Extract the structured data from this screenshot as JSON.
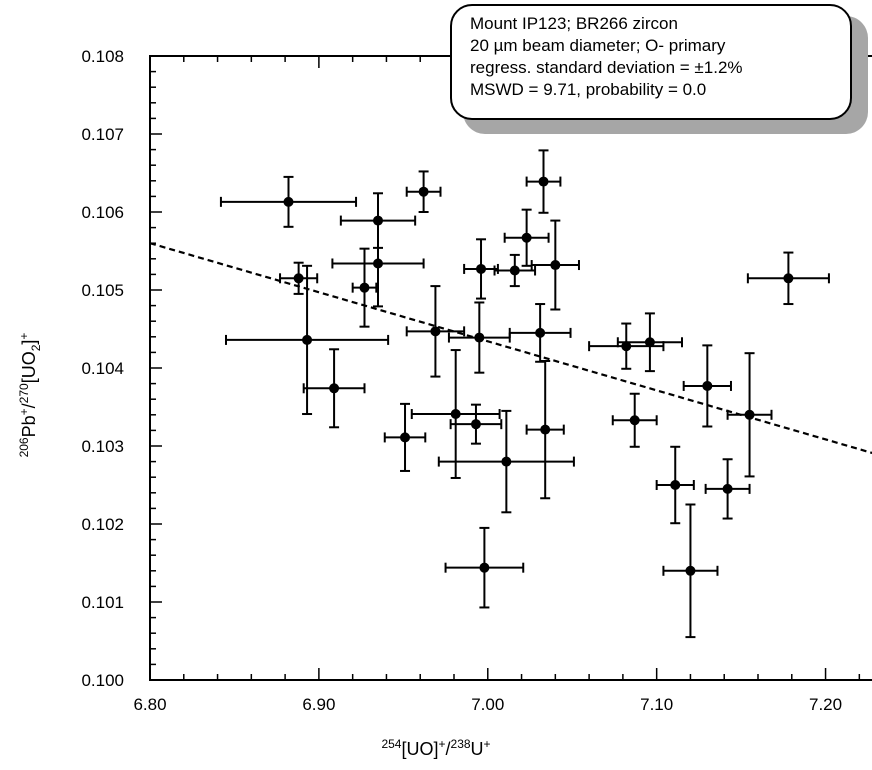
{
  "chart_data": {
    "type": "scatter",
    "xlabel": "254[UO]+/238U+",
    "ylabel": "206Pb+/270[UO2]+",
    "xlim": [
      6.8,
      7.25
    ],
    "ylim": [
      0.1,
      0.108
    ],
    "x_ticks": [
      "6.80",
      "6.90",
      "7.00",
      "7.10",
      "7.20"
    ],
    "y_ticks": [
      "0.100",
      "0.101",
      "0.102",
      "0.103",
      "0.104",
      "0.105",
      "0.106",
      "0.107",
      "0.108"
    ],
    "grid": false,
    "legend_placement": "top-right",
    "annotation": [
      "Mount IP123; BR266 zircon",
      "20 µm beam diameter; O- primary",
      "regress. standard deviation =  ±1.2%",
      "MSWD = 9.71, probability = 0.0"
    ],
    "points": [
      {
        "x": 6.882,
        "y": 0.10613,
        "xerr": 0.04,
        "yerr": 0.00032
      },
      {
        "x": 6.888,
        "y": 0.10515,
        "xerr": 0.011,
        "yerr": 0.0002
      },
      {
        "x": 6.893,
        "y": 0.10436,
        "xerr": 0.048,
        "yerr": 0.00095
      },
      {
        "x": 6.909,
        "y": 0.10374,
        "xerr": 0.018,
        "yerr": 0.0005
      },
      {
        "x": 6.927,
        "y": 0.10503,
        "xerr": 0.007,
        "yerr": 0.0005
      },
      {
        "x": 6.935,
        "y": 0.10589,
        "xerr": 0.022,
        "yerr": 0.00035
      },
      {
        "x": 6.935,
        "y": 0.10534,
        "xerr": 0.027,
        "yerr": 0.00055
      },
      {
        "x": 6.951,
        "y": 0.10311,
        "xerr": 0.012,
        "yerr": 0.00043
      },
      {
        "x": 6.962,
        "y": 0.10626,
        "xerr": 0.01,
        "yerr": 0.00026
      },
      {
        "x": 6.969,
        "y": 0.10447,
        "xerr": 0.017,
        "yerr": 0.00058
      },
      {
        "x": 6.981,
        "y": 0.10341,
        "xerr": 0.026,
        "yerr": 0.00082
      },
      {
        "x": 6.993,
        "y": 0.10328,
        "xerr": 0.015,
        "yerr": 0.00025
      },
      {
        "x": 6.995,
        "y": 0.10439,
        "xerr": 0.018,
        "yerr": 0.00045
      },
      {
        "x": 6.996,
        "y": 0.10527,
        "xerr": 0.01,
        "yerr": 0.00038
      },
      {
        "x": 6.998,
        "y": 0.10144,
        "xerr": 0.023,
        "yerr": 0.00051
      },
      {
        "x": 7.011,
        "y": 0.1028,
        "xerr": 0.04,
        "yerr": 0.00065
      },
      {
        "x": 7.016,
        "y": 0.10525,
        "xerr": 0.012,
        "yerr": 0.0002
      },
      {
        "x": 7.023,
        "y": 0.10567,
        "xerr": 0.013,
        "yerr": 0.00036
      },
      {
        "x": 7.031,
        "y": 0.10445,
        "xerr": 0.018,
        "yerr": 0.00037
      },
      {
        "x": 7.033,
        "y": 0.10639,
        "xerr": 0.01,
        "yerr": 0.0004
      },
      {
        "x": 7.034,
        "y": 0.10321,
        "xerr": 0.011,
        "yerr": 0.00088
      },
      {
        "x": 7.04,
        "y": 0.10532,
        "xerr": 0.014,
        "yerr": 0.00057
      },
      {
        "x": 7.082,
        "y": 0.10428,
        "xerr": 0.022,
        "yerr": 0.00029
      },
      {
        "x": 7.087,
        "y": 0.10333,
        "xerr": 0.013,
        "yerr": 0.00034
      },
      {
        "x": 7.096,
        "y": 0.10433,
        "xerr": 0.019,
        "yerr": 0.00037
      },
      {
        "x": 7.111,
        "y": 0.1025,
        "xerr": 0.011,
        "yerr": 0.00049
      },
      {
        "x": 7.12,
        "y": 0.1014,
        "xerr": 0.016,
        "yerr": 0.00085
      },
      {
        "x": 7.13,
        "y": 0.10377,
        "xerr": 0.014,
        "yerr": 0.00052
      },
      {
        "x": 7.142,
        "y": 0.10245,
        "xerr": 0.013,
        "yerr": 0.00038
      },
      {
        "x": 7.155,
        "y": 0.1034,
        "xerr": 0.013,
        "yerr": 0.00079
      },
      {
        "x": 7.178,
        "y": 0.10515,
        "xerr": 0.024,
        "yerr": 0.00033
      }
    ],
    "regression_line": {
      "x": [
        6.8,
        7.25
      ],
      "y": [
        0.1056,
        0.10277
      ],
      "style": "dashed"
    }
  }
}
